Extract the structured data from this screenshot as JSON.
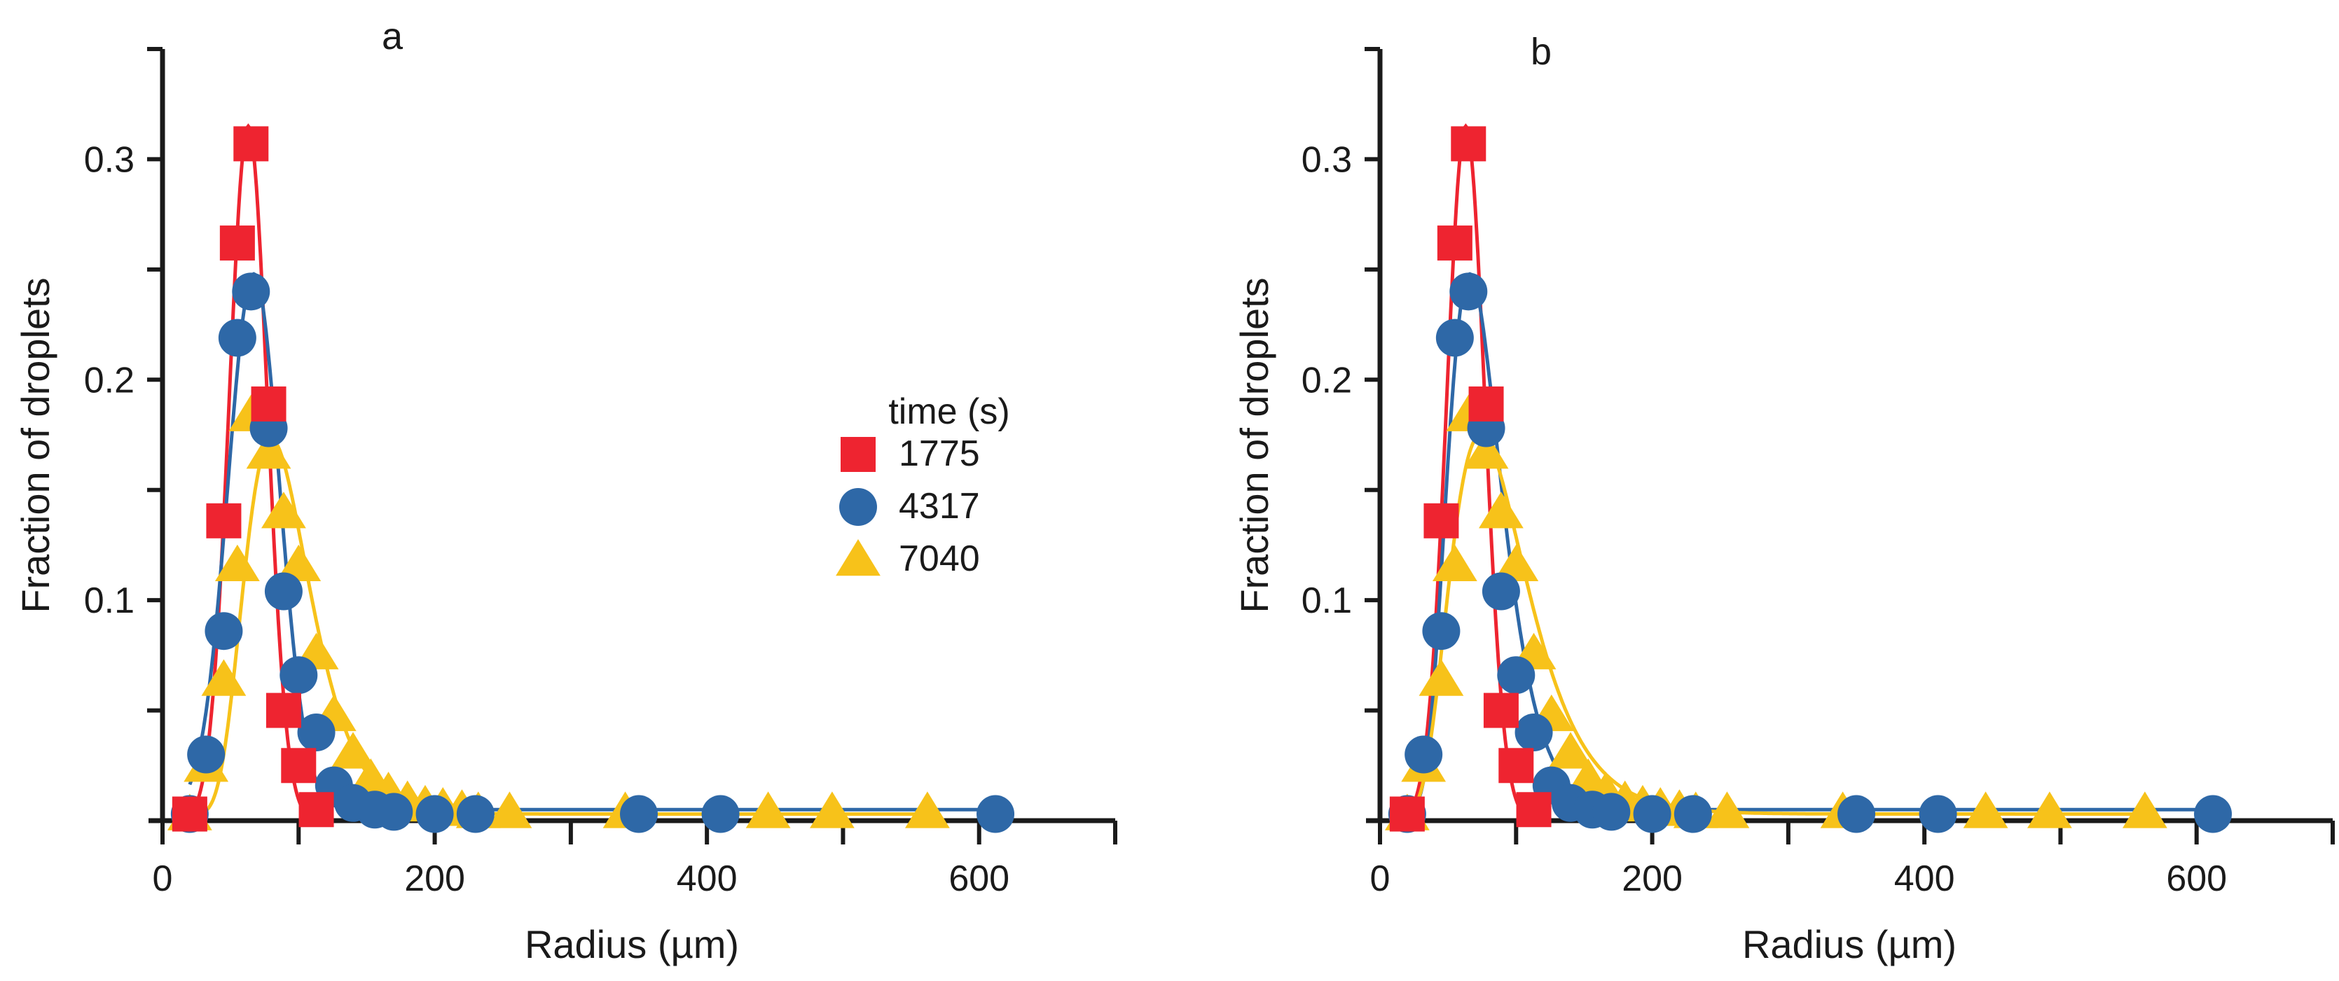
{
  "chart_data": [
    {
      "type": "scatter",
      "panel_label": "a",
      "xlabel": "Radius (µm)",
      "ylabel": "Fraction of droplets",
      "xlim": [
        0,
        700
      ],
      "ylim": [
        0,
        0.35
      ],
      "xticks": [
        0,
        200,
        400,
        600
      ],
      "xticklabels": [
        "0",
        "200",
        "400",
        "600"
      ],
      "xminor": [
        100,
        300,
        500,
        700
      ],
      "yticks": [
        0.1,
        0.2,
        0.3
      ],
      "yticklabels": [
        "0.1",
        "0.2",
        "0.3"
      ],
      "yminor": [
        0.05,
        0.15,
        0.25,
        0.35
      ],
      "legend": {
        "title": "time (s)",
        "position": "center-right"
      },
      "series": [
        {
          "name": "1775",
          "color": "#ee2430",
          "marker": "square",
          "x": [
            20,
            45,
            55,
            65,
            78,
            89,
            100,
            113
          ],
          "y": [
            0.003,
            0.136,
            0.262,
            0.307,
            0.189,
            0.05,
            0.025,
            0.005
          ],
          "fit": {
            "kind": "gaussian",
            "amp": 0.315,
            "mu": 63,
            "sigma": 14,
            "base": 0.0
          }
        },
        {
          "name": "4317",
          "color": "#2e68a7",
          "marker": "circle",
          "x": [
            20,
            32,
            45,
            55,
            65,
            78,
            89,
            100,
            113,
            126,
            140,
            156,
            170,
            200,
            230,
            350,
            410,
            612
          ],
          "y": [
            0.003,
            0.03,
            0.086,
            0.219,
            0.24,
            0.178,
            0.104,
            0.066,
            0.04,
            0.016,
            0.008,
            0.005,
            0.004,
            0.003,
            0.003,
            0.003,
            0.003,
            0.003
          ],
          "fit": {
            "kind": "gaussian",
            "amp": 0.243,
            "mu": 67,
            "sigma": 19,
            "base": 0.005
          }
        },
        {
          "name": "7040",
          "color": "#f7c21a",
          "marker": "triangle",
          "x": [
            20,
            32,
            45,
            55,
            65,
            78,
            89,
            100,
            113,
            126,
            140,
            153,
            166,
            180,
            193,
            206,
            220,
            232,
            255,
            340,
            445,
            492,
            562
          ],
          "y": [
            0.003,
            0.025,
            0.064,
            0.116,
            0.184,
            0.167,
            0.14,
            0.116,
            0.076,
            0.048,
            0.031,
            0.019,
            0.013,
            0.009,
            0.007,
            0.006,
            0.005,
            0.004,
            0.004,
            0.004,
            0.004,
            0.004,
            0.004
          ],
          "fit": {
            "kind": "lognormal",
            "amp": 0.17,
            "mode": 80,
            "s": 0.3,
            "base": 0.003
          }
        }
      ]
    },
    {
      "type": "scatter",
      "panel_label": "b",
      "xlabel": "Radius (µm)",
      "ylabel": "Fraction of droplets",
      "xlim": [
        0,
        700
      ],
      "ylim": [
        0,
        0.35
      ],
      "xticks": [
        0,
        200,
        400,
        600
      ],
      "xticklabels": [
        "0",
        "200",
        "400",
        "600"
      ],
      "xminor": [
        100,
        300,
        500,
        700
      ],
      "yticks": [
        0.1,
        0.2,
        0.3
      ],
      "yticklabels": [
        "0.1",
        "0.2",
        "0.3"
      ],
      "yminor": [
        0.05,
        0.15,
        0.25,
        0.35
      ],
      "legend": null,
      "series": [
        {
          "name": "1775",
          "color": "#ee2430",
          "marker": "square",
          "x": [
            20,
            45,
            55,
            65,
            78,
            89,
            100,
            113
          ],
          "y": [
            0.003,
            0.136,
            0.262,
            0.307,
            0.189,
            0.05,
            0.025,
            0.005
          ],
          "fit": {
            "kind": "gaussian",
            "amp": 0.315,
            "mu": 63,
            "sigma": 14,
            "base": 0.0
          }
        },
        {
          "name": "4317",
          "color": "#2e68a7",
          "marker": "circle",
          "x": [
            20,
            32,
            45,
            55,
            65,
            78,
            89,
            100,
            113,
            126,
            140,
            156,
            170,
            200,
            230,
            350,
            410,
            612
          ],
          "y": [
            0.003,
            0.03,
            0.086,
            0.219,
            0.24,
            0.178,
            0.104,
            0.066,
            0.04,
            0.016,
            0.008,
            0.005,
            0.004,
            0.003,
            0.003,
            0.003,
            0.003,
            0.003
          ],
          "fit": {
            "kind": "lognormal",
            "amp": 0.243,
            "mode": 66,
            "s": 0.3,
            "base": 0.005
          }
        },
        {
          "name": "7040",
          "color": "#f7c21a",
          "marker": "triangle",
          "x": [
            20,
            32,
            45,
            55,
            65,
            78,
            89,
            100,
            113,
            126,
            140,
            153,
            166,
            180,
            193,
            206,
            220,
            232,
            255,
            340,
            445,
            492,
            562
          ],
          "y": [
            0.003,
            0.025,
            0.064,
            0.116,
            0.184,
            0.167,
            0.14,
            0.116,
            0.076,
            0.048,
            0.031,
            0.019,
            0.013,
            0.009,
            0.007,
            0.006,
            0.005,
            0.004,
            0.004,
            0.004,
            0.004,
            0.004,
            0.004
          ],
          "fit": {
            "kind": "lognormal",
            "amp": 0.172,
            "mode": 74,
            "s": 0.38,
            "base": 0.003
          }
        }
      ]
    }
  ]
}
